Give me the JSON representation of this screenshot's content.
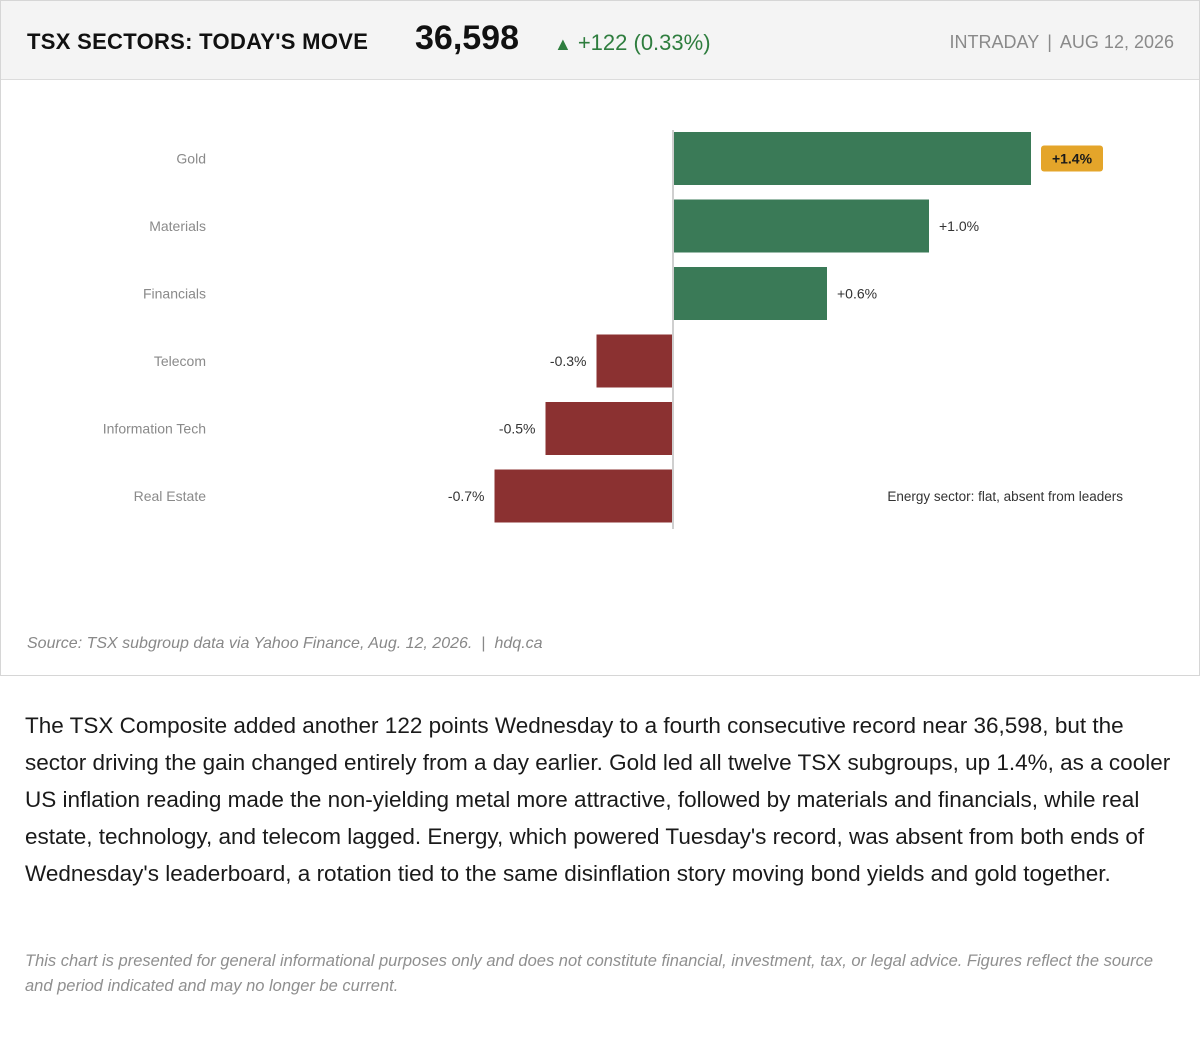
{
  "header": {
    "title": "TSX SECTORS: TODAY'S MOVE",
    "index_value": "36,598",
    "change_arrow": "▲",
    "change_text": "+122 (0.33%)",
    "period": "INTRADAY",
    "separator": "|",
    "date": "AUG 12, 2026"
  },
  "chart_data": {
    "type": "bar",
    "orientation": "horizontal",
    "categories": [
      "Gold",
      "Materials",
      "Financials",
      "Telecom",
      "Information Tech",
      "Real Estate"
    ],
    "values": [
      1.4,
      1.0,
      0.6,
      -0.3,
      -0.5,
      -0.7
    ],
    "value_labels": [
      "+1.4%",
      "+1.0%",
      "+0.6%",
      "-0.3%",
      "-0.5%",
      "-0.7%"
    ],
    "highlighted_index": 0,
    "annotation": "Energy sector: flat, absent from leaders",
    "colors": {
      "positive": "#3a7a57",
      "negative": "#8b3131",
      "highlight_badge": "#e4a52a",
      "zero_line": "#cfcfcf"
    },
    "title": "",
    "xlabel": "",
    "ylabel": "",
    "grid": false
  },
  "source": {
    "text": "Source: TSX subgroup data via Yahoo Finance, Aug. 12, 2026.",
    "separator": "|",
    "site": "hdq.ca"
  },
  "article": "The TSX Composite added another 122 points Wednesday to a fourth consecutive record near 36,598, but the sector driving the gain changed entirely from a day earlier. Gold led all twelve TSX subgroups, up 1.4%, as a cooler US inflation reading made the non-yielding metal more attractive, followed by materials and financials, while real estate, technology, and telecom lagged. Energy, which powered Tuesday's record, was absent from both ends of Wednesday's leaderboard, a rotation tied to the same disinflation story moving bond yields and gold together.",
  "disclaimer": "This chart is presented for general informational purposes only and does not constitute financial, investment, tax, or legal advice. Figures reflect the source and period indicated and may no longer be current."
}
